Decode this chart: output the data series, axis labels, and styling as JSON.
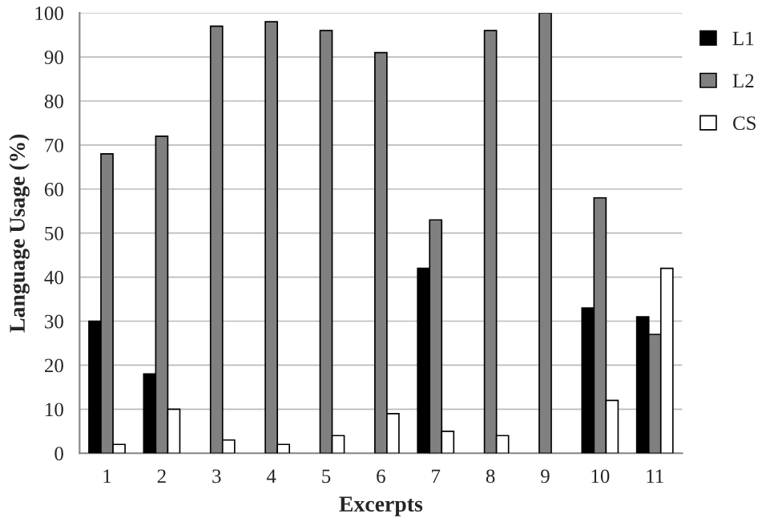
{
  "chart_data": {
    "type": "bar",
    "xlabel": "Excerpts",
    "ylabel": "Language Usage (%)",
    "categories": [
      "1",
      "2",
      "3",
      "4",
      "5",
      "6",
      "7",
      "8",
      "9",
      "10",
      "11"
    ],
    "series": [
      {
        "name": "L1",
        "color": "#000000",
        "values": [
          30,
          18,
          0,
          0,
          0,
          0,
          42,
          0,
          0,
          33,
          31
        ]
      },
      {
        "name": "L2",
        "color": "#808080",
        "values": [
          68,
          72,
          97,
          98,
          96,
          91,
          53,
          96,
          100,
          58,
          27
        ]
      },
      {
        "name": "CS",
        "color": "#ffffff",
        "values": [
          2,
          10,
          3,
          2,
          4,
          9,
          5,
          4,
          0,
          12,
          42
        ]
      }
    ],
    "ylim": [
      0,
      100
    ],
    "yticks": [
      0,
      10,
      20,
      30,
      40,
      50,
      60,
      70,
      80,
      90,
      100
    ],
    "grid": "y",
    "legend": "top right"
  }
}
